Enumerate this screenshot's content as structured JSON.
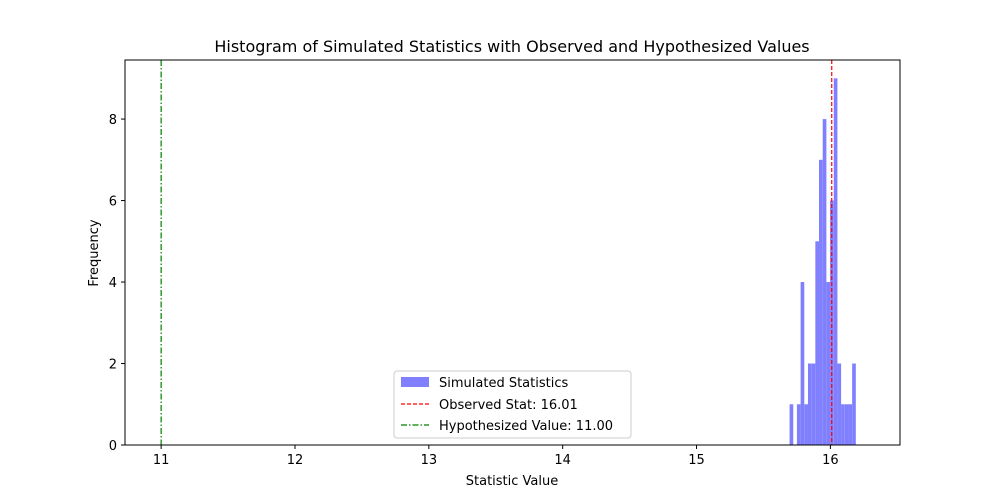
{
  "chart_data": {
    "type": "bar",
    "title": "Histogram of Simulated Statistics with Observed and Hypothesized Values",
    "xlabel": "Statistic Value",
    "ylabel": "Frequency",
    "xlim": [
      10.73,
      16.52
    ],
    "ylim": [
      0,
      9.45
    ],
    "x_ticks": [
      11,
      12,
      13,
      14,
      15,
      16
    ],
    "y_ticks": [
      0,
      2,
      4,
      6,
      8
    ],
    "grid": false,
    "legend_position": "bottom-center",
    "histogram": {
      "name": "Simulated Statistics",
      "color": "#8080ff",
      "bin_start": 15.695,
      "bin_width": 0.0275,
      "counts": [
        1,
        0,
        1,
        4,
        1,
        2,
        2,
        5,
        7,
        8,
        4,
        6,
        9,
        2,
        1,
        1,
        1,
        2
      ]
    },
    "reference_lines": [
      {
        "name": "Observed Stat: 16.01",
        "x": 16.01,
        "color": "#ff0000",
        "style": "dashed"
      },
      {
        "name": "Hypothesized Value: 11.00",
        "x": 11.0,
        "color": "#008000",
        "style": "dashdot"
      }
    ]
  }
}
